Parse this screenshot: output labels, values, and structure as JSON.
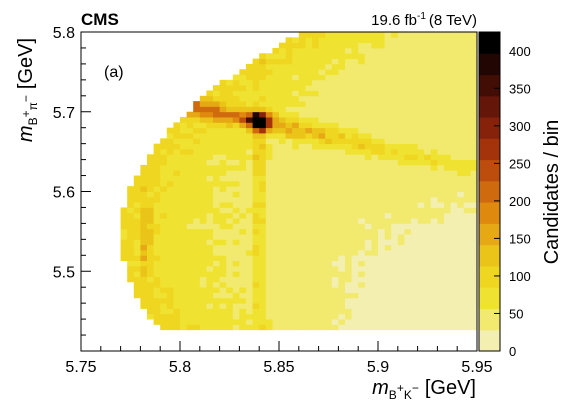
{
  "chart_data": {
    "type": "heatmap",
    "experiment": "CMS",
    "luminosity": {
      "value": "19.6 fb",
      "exponent": "-1",
      "energy": "(8 TeV)"
    },
    "panel_label": "(a)",
    "x_axis": {
      "label_symbol": "m",
      "label_subscript": "B",
      "label_sup1": "+",
      "label_mid": "K",
      "label_sup2": "−",
      "label_unit": "[GeV]",
      "range": [
        5.75,
        5.95
      ],
      "ticks": [
        "5.75",
        "5.8",
        "5.85",
        "5.9",
        "5.95"
      ]
    },
    "y_axis": {
      "label_symbol": "m",
      "label_subscript": "B",
      "label_sup1": "+",
      "label_mid": "π",
      "label_sup2": "−",
      "label_unit": "[GeV]",
      "range": [
        5.4,
        5.8
      ],
      "ticks": [
        "5.5",
        "5.6",
        "5.7",
        "5.8"
      ]
    },
    "z_axis": {
      "label": "Candidates / bin",
      "range": [
        0,
        425
      ],
      "ticks": [
        "0",
        "50",
        "100",
        "150",
        "200",
        "250",
        "300",
        "350",
        "400"
      ]
    },
    "bins": {
      "nx": 60,
      "ny": 60
    },
    "features": {
      "kinematic_boundary": "parabolic: x_min ≈ 5.77 + 1.4·(y − 5.545)^2, lower cut y ≈ 5.43",
      "peak": {
        "x": 5.84,
        "y": 5.688,
        "value": 420
      },
      "vertical_band_x": 5.84,
      "vertical_band_x2": 5.783,
      "diagonal_band": "y ≈ 5.688 − 0.55·(x − 5.84)"
    },
    "colors": {
      "palette": [
        "#f3efb0",
        "#f1ea6e",
        "#f0e230",
        "#efd621",
        "#ebc419",
        "#e6a814",
        "#df8a0f",
        "#cf6a0e",
        "#bc4d0c",
        "#a4330b",
        "#86220a",
        "#641608",
        "#420d05",
        "#210604",
        "#000000"
      ]
    }
  }
}
